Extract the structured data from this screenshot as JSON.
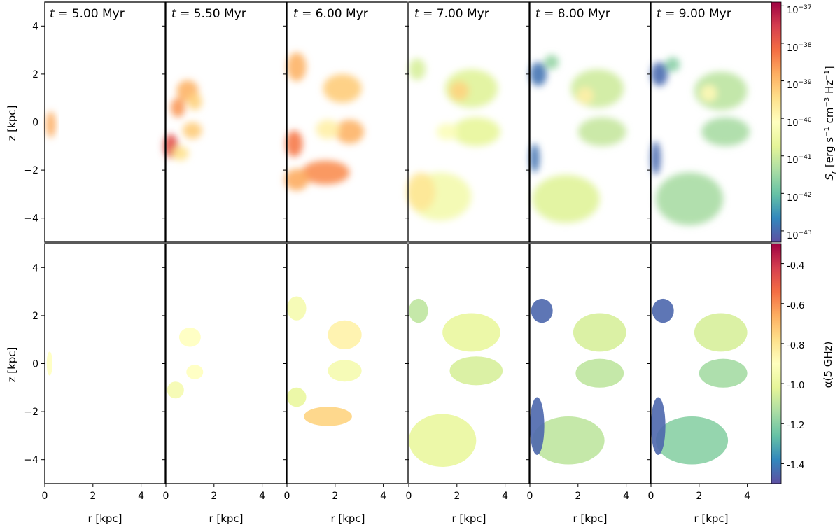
{
  "chart_data": {
    "type": "heatmap",
    "title": "",
    "panel_titles": [
      {
        "t": "t",
        "value": "5.00",
        "unit": "Myr"
      },
      {
        "t": "t",
        "value": "5.50",
        "unit": "Myr"
      },
      {
        "t": "t",
        "value": "6.00",
        "unit": "Myr"
      },
      {
        "t": "t",
        "value": "7.00",
        "unit": "Myr"
      },
      {
        "t": "t",
        "value": "8.00",
        "unit": "Myr"
      },
      {
        "t": "t",
        "value": "9.00",
        "unit": "Myr"
      }
    ],
    "xlabel": "r [kpc]",
    "ylabel": "z [kpc]",
    "xlim": [
      0,
      5
    ],
    "ylim": [
      -5,
      5
    ],
    "xticks": [
      0,
      2,
      4
    ],
    "yticks": [
      4,
      2,
      0,
      -2,
      -4
    ],
    "rows": [
      {
        "quantity": "S_r",
        "colorbar_label": "S_r [erg s^-1 cm^-3 Hz^-1]",
        "colorbar_label_parts": {
          "sym": "S",
          "sub": "r",
          "open": " [erg s",
          "e1": "−1",
          "cm": " cm",
          "e2": "−3",
          "hz": " Hz",
          "e3": "−1",
          "close": "]"
        },
        "scale": "log",
        "clim": [
          -43.3,
          -36.9
        ],
        "colorbar_ticks": [
          {
            "exp": -37,
            "base": "10",
            "sup": "−37"
          },
          {
            "exp": -38,
            "base": "10",
            "sup": "−38"
          },
          {
            "exp": -39,
            "base": "10",
            "sup": "−39"
          },
          {
            "exp": -40,
            "base": "10",
            "sup": "−40"
          },
          {
            "exp": -41,
            "base": "10",
            "sup": "−41"
          },
          {
            "exp": -42,
            "base": "10",
            "sup": "−42"
          },
          {
            "exp": -43,
            "base": "10",
            "sup": "−43"
          }
        ]
      },
      {
        "quantity": "alpha",
        "colorbar_label": "α(5 GHz)",
        "scale": "linear",
        "clim": [
          -1.5,
          -0.3
        ],
        "colorbar_ticks": [
          {
            "value": -0.4,
            "label": "-0.4"
          },
          {
            "value": -0.6,
            "label": "-0.6"
          },
          {
            "value": -0.8,
            "label": "-0.8"
          },
          {
            "value": -1.0,
            "label": "-1.0"
          },
          {
            "value": -1.2,
            "label": "-1.2"
          },
          {
            "value": -1.4,
            "label": "-1.4"
          }
        ]
      }
    ],
    "colormap": [
      "#5e4fa2",
      "#3288bd",
      "#66c2a5",
      "#abdda4",
      "#e6f598",
      "#ffffbf",
      "#fee08b",
      "#fdae61",
      "#f46d43",
      "#d53e4f",
      "#9e0142"
    ],
    "regions": [
      {
        "panel": 0,
        "row": 0,
        "blobs": [
          {
            "r": 0.25,
            "z": -0.1,
            "rr": 0.2,
            "rz": 0.55,
            "v": -38.8
          }
        ]
      },
      {
        "panel": 1,
        "row": 0,
        "blobs": [
          {
            "r": 0.9,
            "z": 1.3,
            "rr": 0.45,
            "rz": 0.45,
            "v": -38.9
          },
          {
            "r": 1.2,
            "z": 0.85,
            "rr": 0.3,
            "rz": 0.35,
            "v": -39.3
          },
          {
            "r": 0.5,
            "z": 0.6,
            "rr": 0.3,
            "rz": 0.4,
            "v": -38.6
          },
          {
            "r": 1.1,
            "z": -0.35,
            "rr": 0.4,
            "rz": 0.35,
            "v": -39.2
          },
          {
            "r": 0.2,
            "z": -1.0,
            "rr": 0.3,
            "rz": 0.5,
            "v": -37.8
          },
          {
            "r": 0.6,
            "z": -1.3,
            "rr": 0.35,
            "rz": 0.3,
            "v": -39.5
          }
        ]
      },
      {
        "panel": 2,
        "row": 0,
        "blobs": [
          {
            "r": 0.4,
            "z": 2.3,
            "rr": 0.4,
            "rz": 0.6,
            "v": -38.9
          },
          {
            "r": 2.3,
            "z": 1.4,
            "rr": 0.8,
            "rz": 0.6,
            "v": -39.2
          },
          {
            "r": 2.6,
            "z": -0.4,
            "rr": 0.6,
            "rz": 0.5,
            "v": -38.9
          },
          {
            "r": 1.7,
            "z": -0.3,
            "rr": 0.5,
            "rz": 0.4,
            "v": -39.8
          },
          {
            "r": 0.3,
            "z": -0.9,
            "rr": 0.35,
            "rz": 0.55,
            "v": -38.3
          },
          {
            "r": 1.6,
            "z": -2.1,
            "rr": 1.0,
            "rz": 0.5,
            "v": -38.5
          },
          {
            "r": 0.4,
            "z": -2.4,
            "rr": 0.5,
            "rz": 0.45,
            "v": -38.8
          }
        ]
      },
      {
        "panel": 3,
        "row": 0,
        "blobs": [
          {
            "r": 0.35,
            "z": 2.2,
            "rr": 0.35,
            "rz": 0.45,
            "v": -40.9
          },
          {
            "r": 2.6,
            "z": 1.4,
            "rr": 1.1,
            "rz": 0.8,
            "v": -40.8
          },
          {
            "r": 2.1,
            "z": 1.3,
            "rr": 0.4,
            "rz": 0.4,
            "v": -39.3
          },
          {
            "r": 2.8,
            "z": -0.4,
            "rr": 1.0,
            "rz": 0.6,
            "v": -40.7
          },
          {
            "r": 1.6,
            "z": -0.4,
            "rr": 0.45,
            "rz": 0.35,
            "v": -40.2
          },
          {
            "r": 1.3,
            "z": -3.1,
            "rr": 1.3,
            "rz": 1.0,
            "v": -40.4
          },
          {
            "r": 0.5,
            "z": -2.9,
            "rr": 0.6,
            "rz": 0.8,
            "v": -39.6
          }
        ]
      },
      {
        "panel": 4,
        "row": 0,
        "blobs": [
          {
            "r": 0.35,
            "z": 2.0,
            "rr": 0.35,
            "rz": 0.5,
            "v": -42.9
          },
          {
            "r": 0.9,
            "z": 2.5,
            "rr": 0.3,
            "rz": 0.3,
            "v": -41.6
          },
          {
            "r": 2.8,
            "z": 1.4,
            "rr": 1.1,
            "rz": 0.8,
            "v": -41.0
          },
          {
            "r": 2.3,
            "z": 1.1,
            "rr": 0.35,
            "rz": 0.35,
            "v": -39.8
          },
          {
            "r": 3.0,
            "z": -0.4,
            "rr": 1.0,
            "rz": 0.6,
            "v": -41.1
          },
          {
            "r": 1.5,
            "z": -3.2,
            "rr": 1.4,
            "rz": 1.0,
            "v": -40.8
          },
          {
            "r": 0.2,
            "z": -1.5,
            "rr": 0.2,
            "rz": 0.6,
            "v": -42.9
          }
        ]
      },
      {
        "panel": 5,
        "row": 0,
        "blobs": [
          {
            "r": 0.35,
            "z": 2.0,
            "rr": 0.35,
            "rz": 0.5,
            "v": -43.0
          },
          {
            "r": 0.9,
            "z": 2.4,
            "rr": 0.3,
            "rz": 0.3,
            "v": -41.7
          },
          {
            "r": 2.9,
            "z": 1.3,
            "rr": 1.1,
            "rz": 0.8,
            "v": -41.2
          },
          {
            "r": 2.4,
            "z": 1.2,
            "rr": 0.35,
            "rz": 0.35,
            "v": -40.0
          },
          {
            "r": 3.1,
            "z": -0.4,
            "rr": 1.0,
            "rz": 0.6,
            "v": -41.4
          },
          {
            "r": 1.6,
            "z": -3.2,
            "rr": 1.4,
            "rz": 1.1,
            "v": -41.4
          },
          {
            "r": 0.2,
            "z": -1.5,
            "rr": 0.2,
            "rz": 0.7,
            "v": -43.0
          }
        ]
      },
      {
        "panel": 0,
        "row": 1,
        "blobs": [
          {
            "r": 0.2,
            "z": 0.0,
            "rr": 0.12,
            "rz": 0.5,
            "v": -0.9
          }
        ]
      },
      {
        "panel": 1,
        "row": 1,
        "blobs": [
          {
            "r": 1.0,
            "z": 1.1,
            "rr": 0.45,
            "rz": 0.4,
            "v": -0.9
          },
          {
            "r": 1.2,
            "z": -0.35,
            "rr": 0.35,
            "rz": 0.3,
            "v": -0.9
          },
          {
            "r": 0.4,
            "z": -1.1,
            "rr": 0.35,
            "rz": 0.35,
            "v": -0.95
          }
        ]
      },
      {
        "panel": 2,
        "row": 1,
        "blobs": [
          {
            "r": 0.4,
            "z": 2.3,
            "rr": 0.4,
            "rz": 0.5,
            "v": -0.95
          },
          {
            "r": 2.4,
            "z": 1.2,
            "rr": 0.7,
            "rz": 0.6,
            "v": -0.85
          },
          {
            "r": 2.4,
            "z": -0.3,
            "rr": 0.7,
            "rz": 0.45,
            "v": -0.95
          },
          {
            "r": 1.7,
            "z": -2.2,
            "rr": 1.0,
            "rz": 0.4,
            "v": -0.75
          },
          {
            "r": 0.4,
            "z": -1.4,
            "rr": 0.4,
            "rz": 0.4,
            "v": -1.0
          }
        ]
      },
      {
        "panel": 3,
        "row": 1,
        "blobs": [
          {
            "r": 0.4,
            "z": 2.2,
            "rr": 0.4,
            "rz": 0.5,
            "v": -1.1
          },
          {
            "r": 2.6,
            "z": 1.3,
            "rr": 1.2,
            "rz": 0.8,
            "v": -1.0
          },
          {
            "r": 2.8,
            "z": -0.3,
            "rr": 1.1,
            "rz": 0.6,
            "v": -1.05
          },
          {
            "r": 1.4,
            "z": -3.2,
            "rr": 1.4,
            "rz": 1.1,
            "v": -1.0
          }
        ]
      },
      {
        "panel": 4,
        "row": 1,
        "blobs": [
          {
            "r": 0.5,
            "z": 2.2,
            "rr": 0.45,
            "rz": 0.5,
            "v": -1.45
          },
          {
            "r": 2.9,
            "z": 1.3,
            "rr": 1.1,
            "rz": 0.8,
            "v": -1.05
          },
          {
            "r": 2.9,
            "z": -0.4,
            "rr": 1.0,
            "rz": 0.6,
            "v": -1.1
          },
          {
            "r": 1.6,
            "z": -3.2,
            "rr": 1.5,
            "rz": 1.0,
            "v": -1.1
          },
          {
            "r": 0.3,
            "z": -2.6,
            "rr": 0.3,
            "rz": 1.2,
            "v": -1.45
          }
        ]
      },
      {
        "panel": 5,
        "row": 1,
        "blobs": [
          {
            "r": 0.5,
            "z": 2.2,
            "rr": 0.45,
            "rz": 0.5,
            "v": -1.45
          },
          {
            "r": 2.9,
            "z": 1.3,
            "rr": 1.1,
            "rz": 0.8,
            "v": -1.05
          },
          {
            "r": 3.0,
            "z": -0.4,
            "rr": 1.0,
            "rz": 0.6,
            "v": -1.15
          },
          {
            "r": 1.7,
            "z": -3.2,
            "rr": 1.5,
            "rz": 1.0,
            "v": -1.2
          },
          {
            "r": 0.3,
            "z": -2.6,
            "rr": 0.3,
            "rz": 1.2,
            "v": -1.45
          }
        ]
      }
    ]
  }
}
